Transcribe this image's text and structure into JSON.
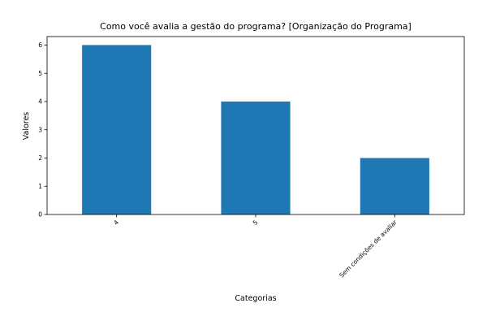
{
  "chart_data": {
    "type": "bar",
    "title": "Como você avalia a gestão do programa? [Organização do Programa]",
    "xlabel": "Categorias",
    "ylabel": "Valores",
    "categories": [
      "4",
      "5",
      "Sem condições de avaliar"
    ],
    "values": [
      6,
      4,
      2
    ],
    "ylim": [
      0,
      6.3
    ],
    "yticks": [
      0,
      1,
      2,
      3,
      4,
      5,
      6
    ],
    "grid": false,
    "legend": "none",
    "bar_color": "#1f77b4"
  }
}
